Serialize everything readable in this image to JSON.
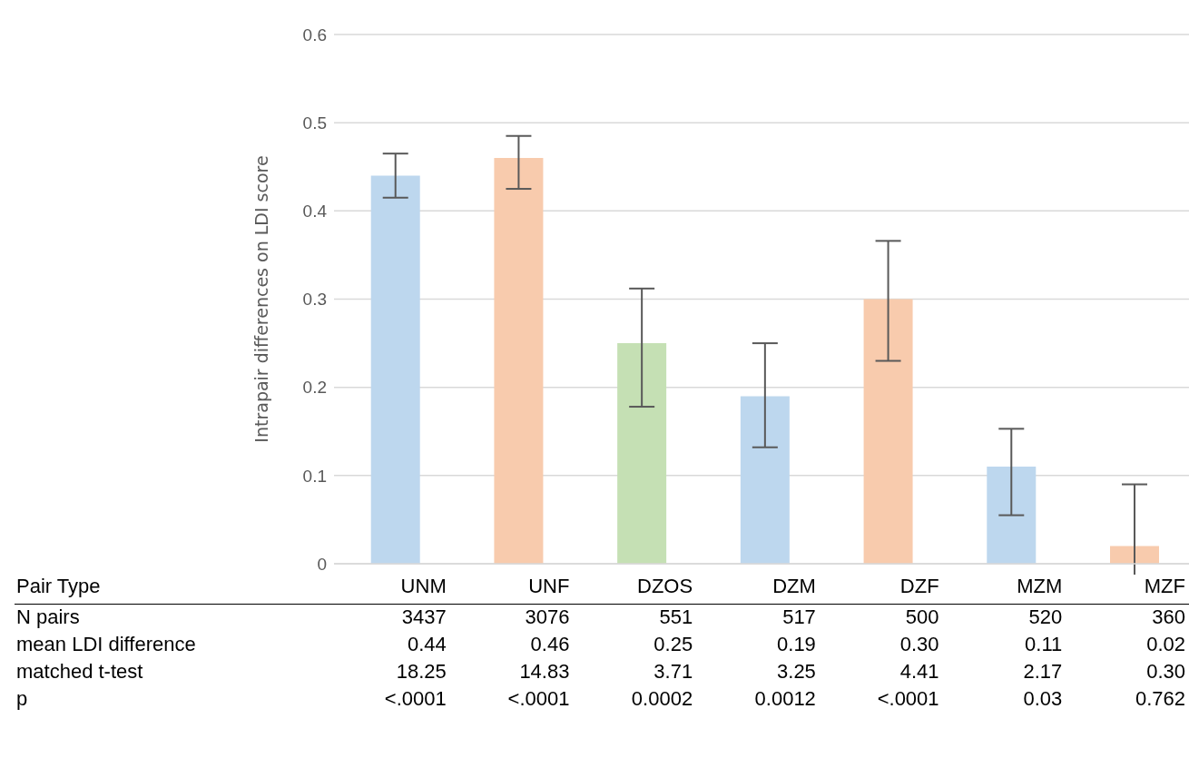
{
  "chart_data": {
    "type": "bar",
    "categories": [
      "UNM",
      "UNF",
      "DZOS",
      "DZM",
      "DZF",
      "MZM",
      "MZF"
    ],
    "values": [
      0.44,
      0.46,
      0.25,
      0.19,
      0.3,
      0.11,
      0.02
    ],
    "colors": [
      "#bdd7ee",
      "#f8cbad",
      "#c5e0b4",
      "#bdd7ee",
      "#f8cbad",
      "#bdd7ee",
      "#f8cbad"
    ],
    "errors": [
      [
        0.415,
        0.465
      ],
      [
        0.425,
        0.485
      ],
      [
        0.178,
        0.312
      ],
      [
        0.132,
        0.25
      ],
      [
        0.23,
        0.366
      ],
      [
        0.055,
        0.153
      ],
      0.07
    ],
    "ylabel": "Intrapair differences on LDI score",
    "ylim": [
      0,
      0.6
    ],
    "yticks": [
      {
        "value": 0,
        "label": "0"
      },
      0.1,
      0.2,
      0.3,
      0.4,
      0.5,
      0.6
    ],
    "grid": "y",
    "annotations": [
      "Pair Type",
      "N pairs",
      "3437",
      "3076",
      "551",
      "517",
      "500",
      "520",
      "360",
      "mean LDI difference",
      "0.44",
      "0.46",
      "0.25",
      "0.19",
      "0.30",
      "0.11",
      "0.02",
      "matched t-test",
      "18.25",
      "14.83",
      "3.71",
      "3.25",
      "4.41",
      "2.17",
      "0.30",
      "p",
      "<.0001",
      "<.0001",
      "0.0002",
      "0.0012",
      "<.0001",
      "0.03",
      "0.762"
    ]
  }
}
